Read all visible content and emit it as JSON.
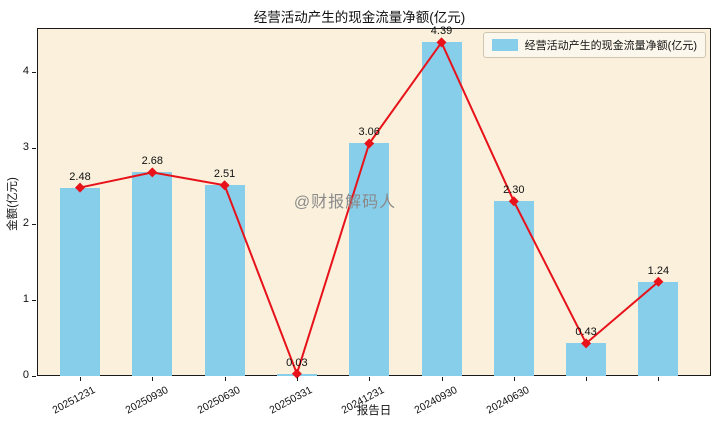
{
  "title": "经营活动产生的现金流量净额(亿元)",
  "legend": {
    "label": "经营活动产生的现金流量净额(亿元)"
  },
  "watermark": "@财报解码人",
  "chart_data": {
    "type": "bar",
    "line_overlay": true,
    "categories": [
      "20251231",
      "20250930",
      "20250630",
      "20250331",
      "20241231",
      "20240930",
      "20240630",
      "",
      ""
    ],
    "values": [
      2.48,
      2.68,
      2.51,
      0.03,
      3.06,
      4.39,
      2.3,
      0.43,
      1.24
    ],
    "data_labels": [
      "2.48",
      "2.68",
      "2.51",
      "0.03",
      "3.06",
      "4.39",
      "2.30",
      "0.43",
      "1.24"
    ],
    "title": "经营活动产生的现金流量净额(亿元)",
    "xlabel": "报告日",
    "ylabel": "金额(亿元)",
    "ylim": [
      0,
      4.58
    ],
    "yticks": [
      0,
      1,
      2,
      3,
      4
    ],
    "grid": false,
    "legend_position": "top-right",
    "marker": "diamond",
    "bar_color": "#87ceeb",
    "line_color": "#e8121a",
    "plot_bg": "#faf0dc",
    "figure_bg": "#ffffff"
  }
}
